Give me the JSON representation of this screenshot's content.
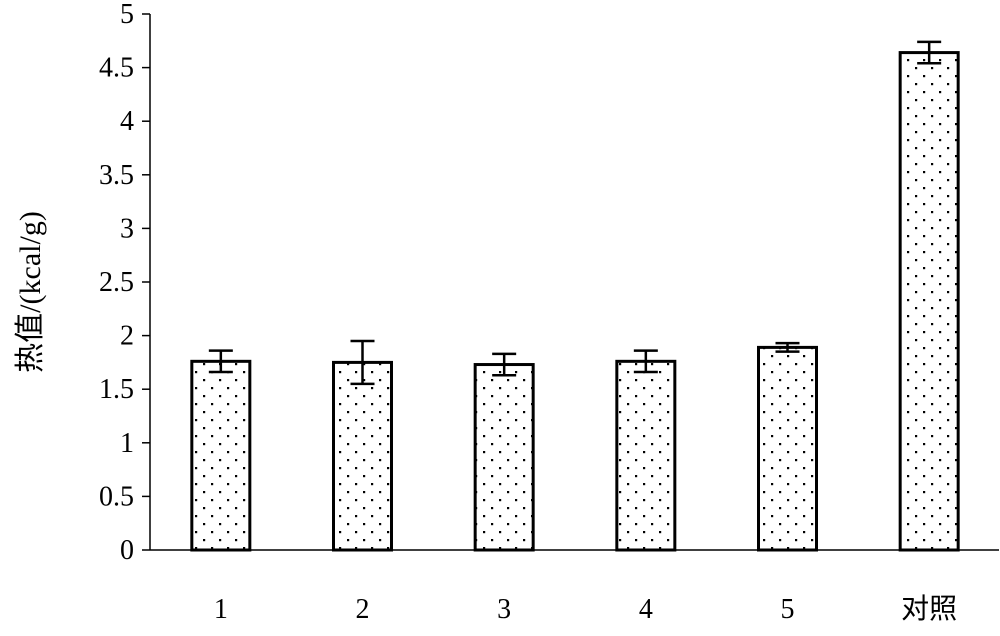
{
  "chart_data": {
    "type": "bar",
    "title": "",
    "xlabel": "",
    "ylabel": "热值/(kcal/g)",
    "categories": [
      "1",
      "2",
      "3",
      "4",
      "5",
      "对照"
    ],
    "values": [
      1.76,
      1.75,
      1.73,
      1.76,
      1.89,
      4.64
    ],
    "error": [
      0.1,
      0.2,
      0.1,
      0.1,
      0.04,
      0.1
    ],
    "ylim": [
      0,
      5
    ],
    "yticks": [
      "0",
      "0.5",
      "1",
      "1.5",
      "2",
      "2.5",
      "3",
      "3.5",
      "4",
      "4.5",
      "5"
    ],
    "grid": false,
    "legend": "none",
    "bar_fill": "dotted",
    "colors": {
      "bar_outline": "#000000",
      "bar_fill": "#ffffff",
      "dots": "#000000",
      "axis": "#000000"
    }
  }
}
